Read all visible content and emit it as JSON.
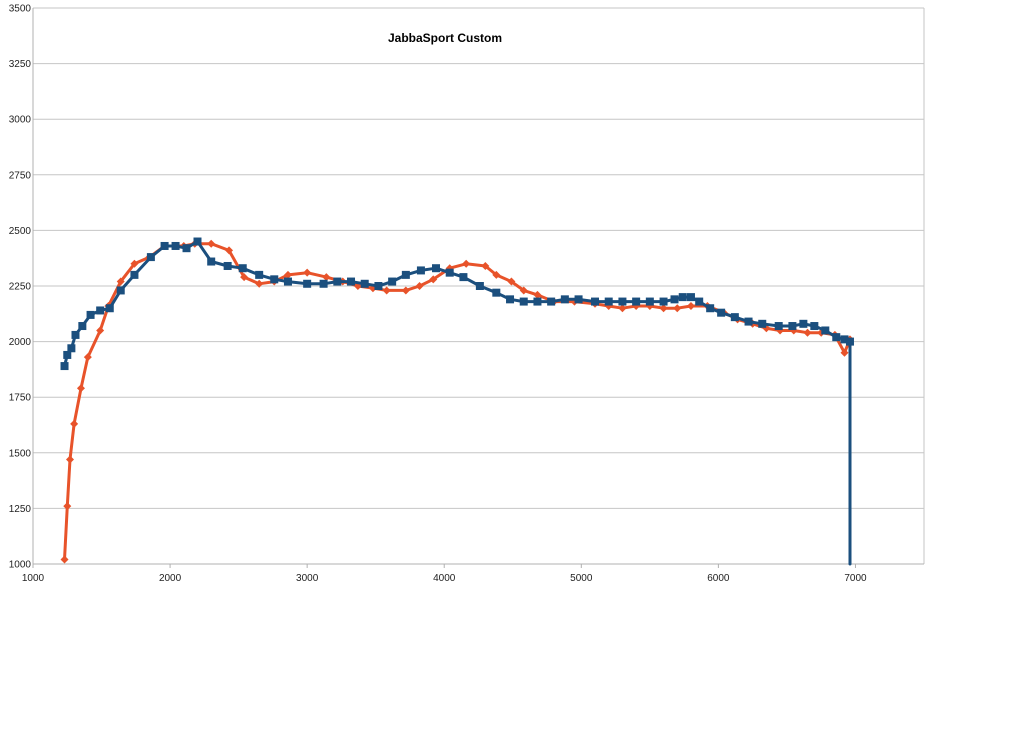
{
  "chart_data": {
    "type": "line",
    "title": "JabbaSport Custom",
    "xlabel": "",
    "ylabel": "",
    "xlim": [
      1000,
      7500
    ],
    "ylim": [
      1000,
      3500
    ],
    "x_ticks": [
      1000,
      2000,
      3000,
      4000,
      5000,
      6000,
      7000
    ],
    "y_ticks": [
      1000,
      1250,
      1500,
      1750,
      2000,
      2250,
      2500,
      2750,
      3000,
      3250,
      3500
    ],
    "grid": "horizontal",
    "legend": "none",
    "series": [
      {
        "color": "#e8532a",
        "marker": "diamond",
        "points": [
          [
            1230,
            1020
          ],
          [
            1250,
            1260
          ],
          [
            1270,
            1470
          ],
          [
            1300,
            1630
          ],
          [
            1350,
            1790
          ],
          [
            1400,
            1930
          ],
          [
            1490,
            2050
          ],
          [
            1550,
            2160
          ],
          [
            1640,
            2270
          ],
          [
            1740,
            2350
          ],
          [
            1850,
            2380
          ],
          [
            1960,
            2430
          ],
          [
            2100,
            2430
          ],
          [
            2180,
            2440
          ],
          [
            2300,
            2440
          ],
          [
            2430,
            2410
          ],
          [
            2540,
            2290
          ],
          [
            2650,
            2260
          ],
          [
            2760,
            2270
          ],
          [
            2860,
            2300
          ],
          [
            3000,
            2310
          ],
          [
            3140,
            2290
          ],
          [
            3260,
            2270
          ],
          [
            3370,
            2250
          ],
          [
            3480,
            2240
          ],
          [
            3580,
            2230
          ],
          [
            3720,
            2230
          ],
          [
            3820,
            2250
          ],
          [
            3920,
            2280
          ],
          [
            4040,
            2330
          ],
          [
            4160,
            2350
          ],
          [
            4300,
            2340
          ],
          [
            4380,
            2300
          ],
          [
            4490,
            2270
          ],
          [
            4580,
            2230
          ],
          [
            4680,
            2210
          ],
          [
            4800,
            2180
          ],
          [
            4950,
            2180
          ],
          [
            5100,
            2170
          ],
          [
            5200,
            2160
          ],
          [
            5300,
            2150
          ],
          [
            5400,
            2160
          ],
          [
            5500,
            2160
          ],
          [
            5600,
            2150
          ],
          [
            5700,
            2150
          ],
          [
            5800,
            2160
          ],
          [
            5920,
            2160
          ],
          [
            6040,
            2130
          ],
          [
            6140,
            2100
          ],
          [
            6250,
            2080
          ],
          [
            6350,
            2060
          ],
          [
            6450,
            2050
          ],
          [
            6550,
            2050
          ],
          [
            6650,
            2040
          ],
          [
            6750,
            2040
          ],
          [
            6850,
            2030
          ],
          [
            6920,
            1950
          ],
          [
            6960,
            2010
          ]
        ]
      },
      {
        "color": "#1b4f7e",
        "marker": "square",
        "points": [
          [
            1230,
            1890
          ],
          [
            1250,
            1940
          ],
          [
            1280,
            1970
          ],
          [
            1310,
            2030
          ],
          [
            1360,
            2070
          ],
          [
            1420,
            2120
          ],
          [
            1490,
            2140
          ],
          [
            1560,
            2150
          ],
          [
            1640,
            2230
          ],
          [
            1740,
            2300
          ],
          [
            1860,
            2380
          ],
          [
            1960,
            2430
          ],
          [
            2040,
            2430
          ],
          [
            2120,
            2420
          ],
          [
            2200,
            2450
          ],
          [
            2300,
            2360
          ],
          [
            2420,
            2340
          ],
          [
            2530,
            2330
          ],
          [
            2650,
            2300
          ],
          [
            2760,
            2280
          ],
          [
            2860,
            2270
          ],
          [
            3000,
            2260
          ],
          [
            3120,
            2260
          ],
          [
            3220,
            2270
          ],
          [
            3320,
            2270
          ],
          [
            3420,
            2260
          ],
          [
            3520,
            2250
          ],
          [
            3620,
            2270
          ],
          [
            3720,
            2300
          ],
          [
            3830,
            2320
          ],
          [
            3940,
            2330
          ],
          [
            4040,
            2310
          ],
          [
            4140,
            2290
          ],
          [
            4260,
            2250
          ],
          [
            4380,
            2220
          ],
          [
            4480,
            2190
          ],
          [
            4580,
            2180
          ],
          [
            4680,
            2180
          ],
          [
            4780,
            2180
          ],
          [
            4880,
            2190
          ],
          [
            4980,
            2190
          ],
          [
            5100,
            2180
          ],
          [
            5200,
            2180
          ],
          [
            5300,
            2180
          ],
          [
            5400,
            2180
          ],
          [
            5500,
            2180
          ],
          [
            5600,
            2180
          ],
          [
            5680,
            2190
          ],
          [
            5740,
            2200
          ],
          [
            5800,
            2200
          ],
          [
            5860,
            2180
          ],
          [
            5940,
            2150
          ],
          [
            6020,
            2130
          ],
          [
            6120,
            2110
          ],
          [
            6220,
            2090
          ],
          [
            6320,
            2080
          ],
          [
            6440,
            2070
          ],
          [
            6540,
            2070
          ],
          [
            6620,
            2080
          ],
          [
            6700,
            2070
          ],
          [
            6780,
            2050
          ],
          [
            6860,
            2020
          ],
          [
            6920,
            2010
          ],
          [
            6960,
            2000
          ],
          [
            6960,
            1000
          ]
        ]
      }
    ]
  }
}
